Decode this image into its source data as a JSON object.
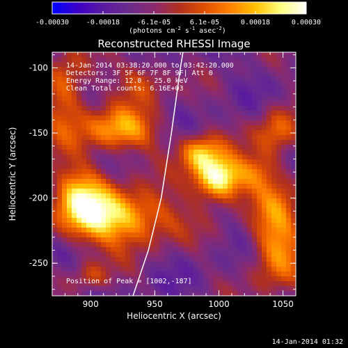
{
  "chart_data": {
    "type": "heatmap",
    "title": "Reconstructed RHESSI Image",
    "xlabel": "Heliocentric X (arcsec)",
    "ylabel": "Heliocentric Y (arcsec)",
    "xlim": [
      870,
      1060
    ],
    "ylim": [
      -275,
      -88
    ],
    "x_ticks": [
      "900",
      "950",
      "1000",
      "1050"
    ],
    "y_ticks": [
      "-100",
      "-150",
      "-200",
      "-250"
    ],
    "colorbar": {
      "range": [
        -0.0003,
        0.0003
      ],
      "tick_labels": [
        "-0.00030",
        "-0.00018",
        "-6.1e-05",
        "6.1e-05",
        "0.00018",
        "0.00030"
      ],
      "unit_main": "(photons cm",
      "unit_sup1": "-2",
      "unit_mid1": " s",
      "unit_sup2": "-1",
      "unit_mid2": " asec",
      "unit_sup3": "-2",
      "unit_end": ")",
      "colormap": [
        "#0000ff",
        "#3c00c8",
        "#5a1aa0",
        "#6a2c8c",
        "#8a2a70",
        "#b03020",
        "#e05000",
        "#ff8000",
        "#ffc000",
        "#ffff80",
        "#ffffff"
      ]
    },
    "annotations": {
      "time_range": "14-Jan-2014 03:38:20.000 to 03:42:20.000",
      "detectors": "Detectors: 3F 5F 6F 7F 8F 9F| Att 0",
      "energy": "Energy Range: 12.0 - 25.0 keV",
      "clean": "Clean     Total counts: 6.16E+03",
      "peak": "Position of Peak = [1002,-187]"
    },
    "peak": {
      "x": 1002,
      "y": -187
    },
    "limb_curve": [
      [
        933,
        -275
      ],
      [
        945,
        -240
      ],
      [
        955,
        -200
      ],
      [
        963,
        -150
      ],
      [
        970,
        -100
      ],
      [
        972,
        -88
      ]
    ],
    "hot_spots": [
      {
        "x": 1000,
        "y": -185,
        "sx": 14,
        "sy": 12,
        "amp": 1.0
      },
      {
        "x": 985,
        "y": -165,
        "sx": 12,
        "sy": 10,
        "amp": 0.6
      },
      {
        "x": 925,
        "y": -215,
        "sx": 28,
        "sy": 15,
        "amp": 0.75
      },
      {
        "x": 892,
        "y": -200,
        "sx": 16,
        "sy": 20,
        "amp": 0.6
      },
      {
        "x": 922,
        "y": -148,
        "sx": 22,
        "sy": 12,
        "amp": 0.6
      },
      {
        "x": 880,
        "y": -120,
        "sx": 12,
        "sy": 22,
        "amp": 0.5
      },
      {
        "x": 940,
        "y": -110,
        "sx": 14,
        "sy": 12,
        "amp": 0.4
      },
      {
        "x": 1045,
        "y": -230,
        "sx": 14,
        "sy": 30,
        "amp": 0.6
      },
      {
        "x": 1030,
        "y": -180,
        "sx": 10,
        "sy": 10,
        "amp": 0.3
      },
      {
        "x": 1045,
        "y": -150,
        "sx": 12,
        "sy": 14,
        "amp": 0.45
      },
      {
        "x": 900,
        "y": -260,
        "sx": 10,
        "sy": 8,
        "amp": 0.3
      }
    ]
  },
  "footer": {
    "timestamp": "14-Jan-2014 01:32"
  }
}
